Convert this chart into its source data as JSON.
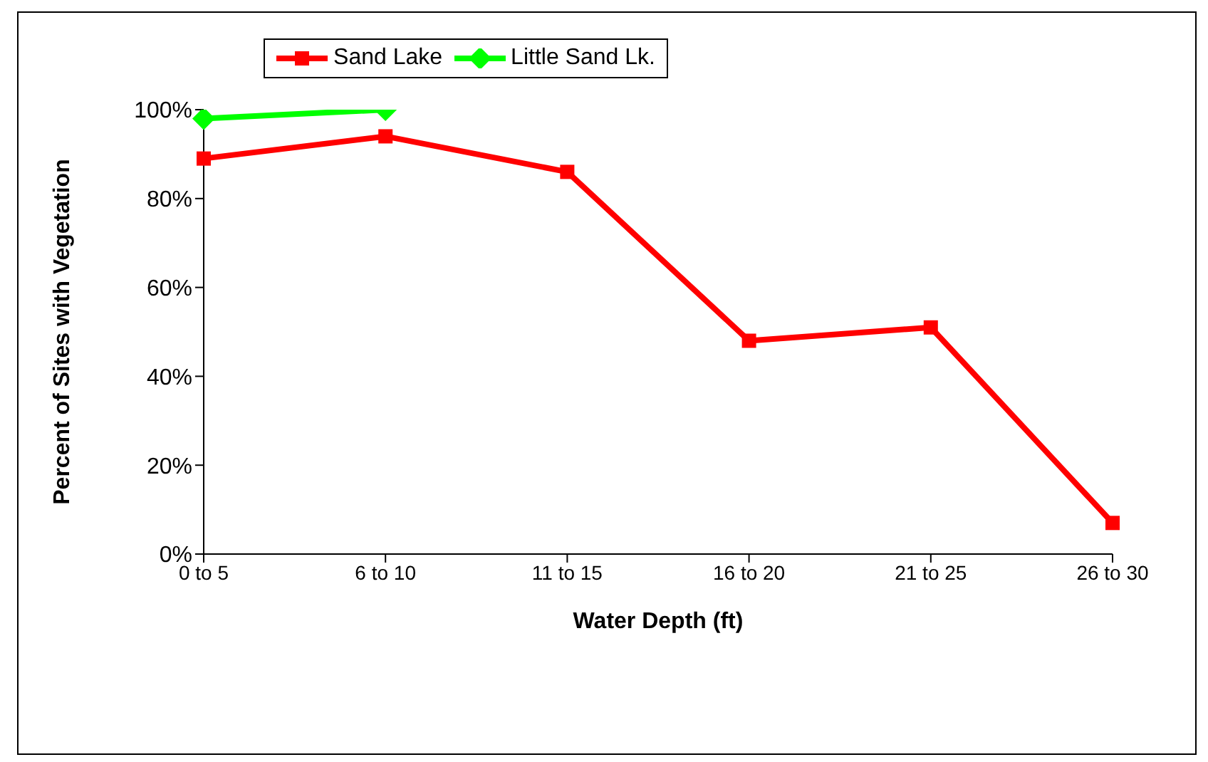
{
  "chart_data": {
    "type": "line",
    "xlabel": "Water Depth (ft)",
    "ylabel": "Percent of Sites with Vegetation",
    "categories": [
      "0 to 5",
      "6 to 10",
      "11 to 15",
      "16 to 20",
      "21 to 25",
      "26 to 30"
    ],
    "series": [
      {
        "name": "Sand Lake",
        "color": "#ff0000",
        "marker": "square",
        "values": [
          89,
          94,
          86,
          48,
          51,
          7
        ]
      },
      {
        "name": "Little Sand Lk.",
        "color": "#00ff00",
        "marker": "diamond",
        "values": [
          98,
          100,
          null,
          null,
          null,
          null
        ]
      }
    ],
    "ylim": [
      0,
      100
    ],
    "yticks": [
      {
        "value": 0,
        "label": "0%"
      },
      {
        "value": 20,
        "label": "20%"
      },
      {
        "value": 40,
        "label": "40%"
      },
      {
        "value": 60,
        "label": "60%"
      },
      {
        "value": 80,
        "label": "80%"
      },
      {
        "value": 100,
        "label": "100%"
      }
    ],
    "grid": false,
    "legend": "top",
    "line_style": "solid"
  }
}
